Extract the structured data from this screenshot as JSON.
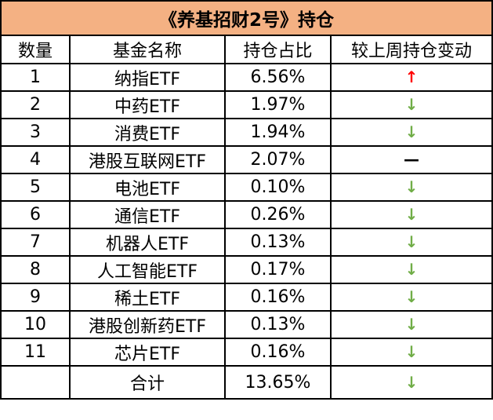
{
  "title": "《养基招财2号》持仓",
  "headers": {
    "num": "数量",
    "name": "基金名称",
    "share": "持仓占比",
    "change": "较上周持仓变动"
  },
  "rows": [
    {
      "num": "1",
      "name": "纳指ETF",
      "share": "6.56%",
      "change": "up",
      "glyph": "↑",
      "color": "#ff0000"
    },
    {
      "num": "2",
      "name": "中药ETF",
      "share": "1.97%",
      "change": "down",
      "glyph": "↓",
      "color": "#70ad47"
    },
    {
      "num": "3",
      "name": "消费ETF",
      "share": "1.94%",
      "change": "down",
      "glyph": "↓",
      "color": "#70ad47"
    },
    {
      "num": "4",
      "name": "港股互联网ETF",
      "share": "2.07%",
      "change": "unchanged",
      "glyph": "—",
      "color": "#000000"
    },
    {
      "num": "5",
      "name": "电池ETF",
      "share": "0.10%",
      "change": "down",
      "glyph": "↓",
      "color": "#70ad47"
    },
    {
      "num": "6",
      "name": "通信ETF",
      "share": "0.26%",
      "change": "down",
      "glyph": "↓",
      "color": "#70ad47"
    },
    {
      "num": "7",
      "name": "机器人ETF",
      "share": "0.13%",
      "change": "down",
      "glyph": "↓",
      "color": "#70ad47"
    },
    {
      "num": "8",
      "name": "人工智能ETF",
      "share": "0.17%",
      "change": "down",
      "glyph": "↓",
      "color": "#70ad47"
    },
    {
      "num": "9",
      "name": "稀土ETF",
      "share": "0.16%",
      "change": "down",
      "glyph": "↓",
      "color": "#70ad47"
    },
    {
      "num": "10",
      "name": "港股创新药ETF",
      "share": "0.13%",
      "change": "down",
      "glyph": "↓",
      "color": "#70ad47"
    },
    {
      "num": "11",
      "name": "芯片ETF",
      "share": "0.16%",
      "change": "down",
      "glyph": "↓",
      "color": "#70ad47"
    }
  ],
  "total": {
    "num": "",
    "label": "合计",
    "share": "13.65%",
    "change": "down",
    "glyph": "↓",
    "color": "#70ad47"
  },
  "colors": {
    "title_background": "#f4b183",
    "increase": "#ff0000",
    "decrease": "#70ad47",
    "unchanged": "#000000"
  }
}
